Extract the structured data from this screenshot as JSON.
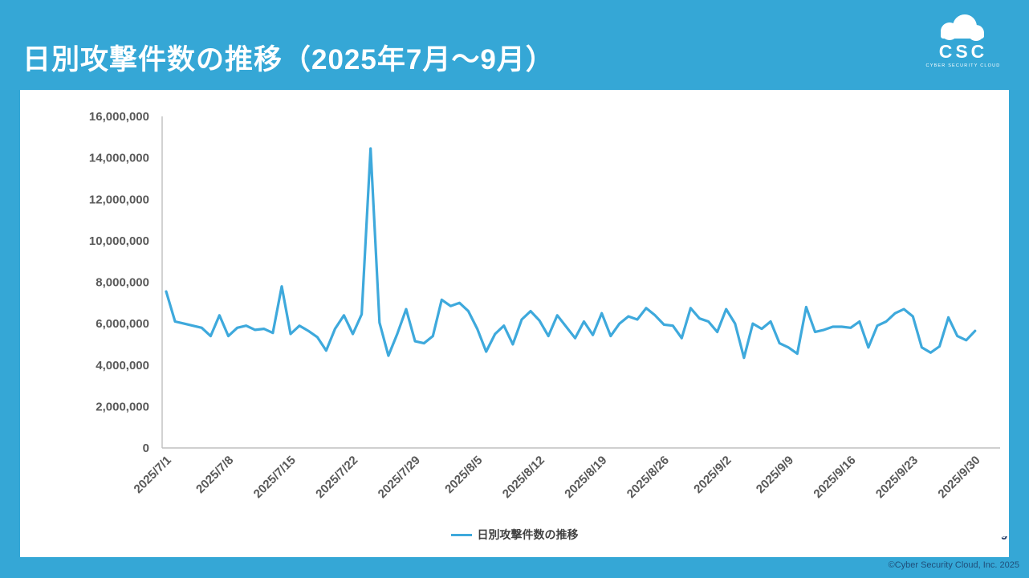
{
  "slide": {
    "title": "日別攻撃件数の推移（2025年7月〜9月）",
    "footer_copyright": "©Cyber Security Cloud, Inc. 2025",
    "logo": {
      "acronym": "CSC",
      "caption": "CYBER SECURITY CLOUD"
    }
  },
  "colors": {
    "background_blue": "#35A7D6",
    "line_blue": "#3EA9DC",
    "axis_gray": "#BFBFBF",
    "tick_label_gray": "#595959",
    "legend_text": "#404040",
    "footer_text": "#1F4E79",
    "title_white": "#FFFFFF"
  },
  "chart_data": {
    "type": "line",
    "title": "",
    "series_name": "日別攻撃件数の推移",
    "legend_position": "bottom",
    "grid": false,
    "ylim": [
      0,
      16000000
    ],
    "y_ticks": [
      0,
      2000000,
      4000000,
      6000000,
      8000000,
      10000000,
      12000000,
      14000000,
      16000000
    ],
    "x_tick_every_days": 7,
    "x_tick_labels": [
      "2025/7/1",
      "2025/7/8",
      "2025/7/15",
      "2025/7/22",
      "2025/7/29",
      "2025/8/5",
      "2025/8/12",
      "2025/8/19",
      "2025/8/26",
      "2025/9/2",
      "2025/9/9",
      "2025/9/16",
      "2025/9/23",
      "2025/9/30"
    ],
    "x": [
      "2025/7/1",
      "2025/7/2",
      "2025/7/3",
      "2025/7/4",
      "2025/7/5",
      "2025/7/6",
      "2025/7/7",
      "2025/7/8",
      "2025/7/9",
      "2025/7/10",
      "2025/7/11",
      "2025/7/12",
      "2025/7/13",
      "2025/7/14",
      "2025/7/15",
      "2025/7/16",
      "2025/7/17",
      "2025/7/18",
      "2025/7/19",
      "2025/7/20",
      "2025/7/21",
      "2025/7/22",
      "2025/7/23",
      "2025/7/24",
      "2025/7/25",
      "2025/7/26",
      "2025/7/27",
      "2025/7/28",
      "2025/7/29",
      "2025/7/30",
      "2025/7/31",
      "2025/8/1",
      "2025/8/2",
      "2025/8/3",
      "2025/8/4",
      "2025/8/5",
      "2025/8/6",
      "2025/8/7",
      "2025/8/8",
      "2025/8/9",
      "2025/8/10",
      "2025/8/11",
      "2025/8/12",
      "2025/8/13",
      "2025/8/14",
      "2025/8/15",
      "2025/8/16",
      "2025/8/17",
      "2025/8/18",
      "2025/8/19",
      "2025/8/20",
      "2025/8/21",
      "2025/8/22",
      "2025/8/23",
      "2025/8/24",
      "2025/8/25",
      "2025/8/26",
      "2025/8/27",
      "2025/8/28",
      "2025/8/29",
      "2025/8/30",
      "2025/8/31",
      "2025/9/1",
      "2025/9/2",
      "2025/9/3",
      "2025/9/4",
      "2025/9/5",
      "2025/9/6",
      "2025/9/7",
      "2025/9/8",
      "2025/9/9",
      "2025/9/10",
      "2025/9/11",
      "2025/9/12",
      "2025/9/13",
      "2025/9/14",
      "2025/9/15",
      "2025/9/16",
      "2025/9/17",
      "2025/9/18",
      "2025/9/19",
      "2025/9/20",
      "2025/9/21",
      "2025/9/22",
      "2025/9/23",
      "2025/9/24",
      "2025/9/25",
      "2025/9/26",
      "2025/9/27",
      "2025/9/28",
      "2025/9/29",
      "2025/9/30"
    ],
    "values": [
      7550000,
      6100000,
      6000000,
      5900000,
      5800000,
      5400000,
      6400000,
      5400000,
      5800000,
      5900000,
      5700000,
      5750000,
      5550000,
      7800000,
      5500000,
      5900000,
      5650000,
      5350000,
      4700000,
      5750000,
      6400000,
      5500000,
      6450000,
      14450000,
      6050000,
      4450000,
      5500000,
      6700000,
      5150000,
      5050000,
      5400000,
      7150000,
      6850000,
      7000000,
      6600000,
      5750000,
      4650000,
      5500000,
      5900000,
      5000000,
      6200000,
      6600000,
      6150000,
      5400000,
      6400000,
      5850000,
      5300000,
      6100000,
      5450000,
      6500000,
      5400000,
      6000000,
      6350000,
      6200000,
      6750000,
      6400000,
      5950000,
      5900000,
      5300000,
      6750000,
      6250000,
      6100000,
      5600000,
      6700000,
      6000000,
      4350000,
      6000000,
      5750000,
      6100000,
      5050000,
      4850000,
      4550000,
      6800000,
      5600000,
      5700000,
      5850000,
      5850000,
      5800000,
      6100000,
      4850000,
      5900000,
      6100000,
      6500000,
      6700000,
      6350000,
      4850000,
      4600000,
      4900000,
      6300000,
      5400000,
      5200000,
      5650000
    ]
  }
}
